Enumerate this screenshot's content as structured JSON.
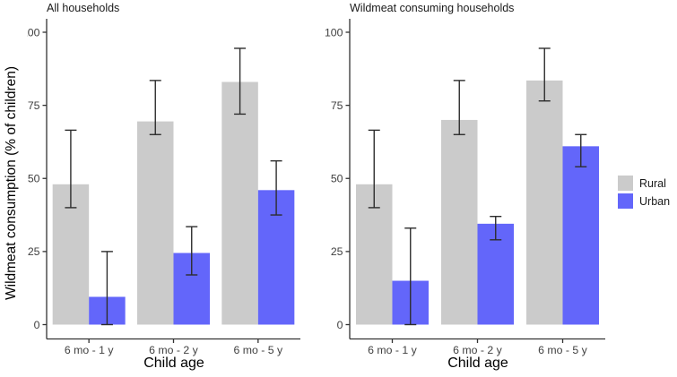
{
  "figure_title": "",
  "ylabel": "Wildmeat consumption (% of children)",
  "xlabel": "Child age",
  "legend": {
    "position": "right",
    "entries": [
      {
        "label": "Rural",
        "color": "#cbcbcb"
      },
      {
        "label": "Urban",
        "color": "#6366fa"
      }
    ]
  },
  "colors": {
    "rural_bar": "#cbcbcb",
    "urban_bar": "#6366fa",
    "error_bar": "#2d2d2d",
    "axis_line": "#333333",
    "tick_label": "#404040",
    "title_text": "#1a1a1a",
    "background": "#ffffff"
  },
  "chart_data": {
    "type": "bar",
    "subtype": "grouped-with-error-bars",
    "grid": false,
    "legend_position": "right",
    "categories": [
      "6 mo - 1 y",
      "6 mo - 2 y",
      "6 mo - 5 y"
    ],
    "xlabel": "Child age",
    "ylabel": "Wildmeat consumption (% of children)",
    "ylim": [
      0,
      100
    ],
    "yticks": [
      0,
      25,
      50,
      75,
      100
    ],
    "legend": {
      "entries": [
        "Rural",
        "Urban"
      ]
    },
    "series_colors": {
      "Rural": "#cbcbcb",
      "Urban": "#6366fa"
    },
    "panels": [
      {
        "title": "All households",
        "series": [
          {
            "name": "Rural",
            "values": [
              48,
              69.5,
              83
            ],
            "ci_low": [
              40,
              65,
              72
            ],
            "ci_high": [
              66.5,
              83.5,
              94.5
            ]
          },
          {
            "name": "Urban",
            "values": [
              9.5,
              24.5,
              46
            ],
            "ci_low": [
              0,
              17,
              37.5
            ],
            "ci_high": [
              25,
              33.5,
              56
            ]
          }
        ]
      },
      {
        "title": "Wildmeat consuming households",
        "series": [
          {
            "name": "Rural",
            "values": [
              48,
              70,
              83.5
            ],
            "ci_low": [
              40,
              65,
              76.5
            ],
            "ci_high": [
              66.5,
              83.5,
              94.5
            ]
          },
          {
            "name": "Urban",
            "values": [
              15,
              34.5,
              61
            ],
            "ci_low": [
              0,
              29,
              54
            ],
            "ci_high": [
              33,
              37,
              65
            ]
          }
        ]
      }
    ]
  }
}
